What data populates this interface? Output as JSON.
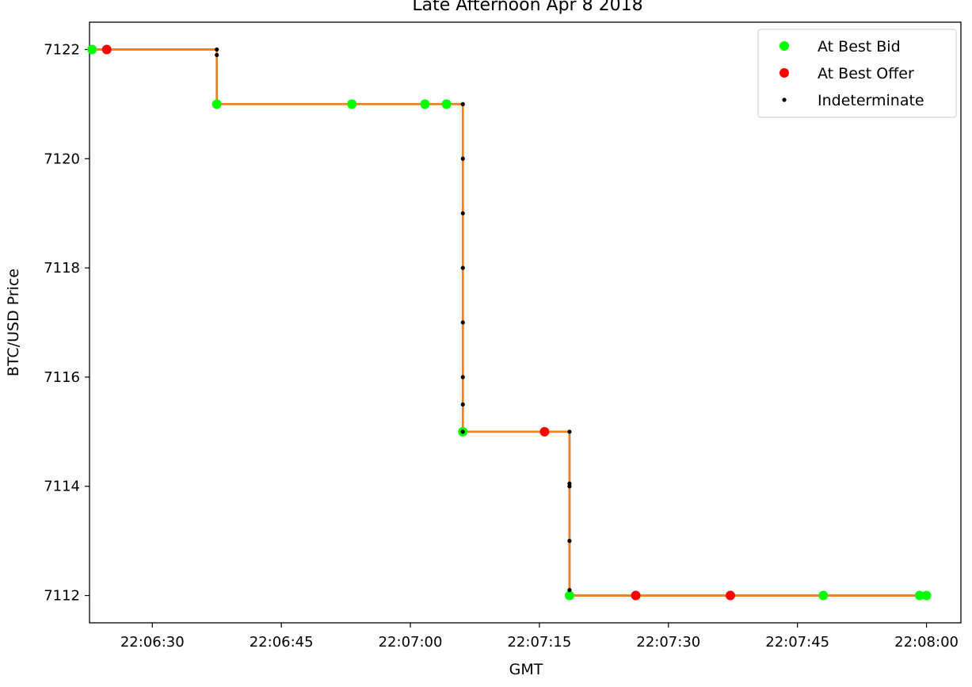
{
  "chart_data": {
    "type": "line",
    "title": "Late Afternoon Apr 8 2018",
    "xlabel": "GMT",
    "ylabel": "BTC/USD Price",
    "x_ticks": [
      "22:06:30",
      "22:06:45",
      "22:07:00",
      "22:07:15",
      "22:07:30",
      "22:07:45",
      "22:08:00"
    ],
    "x_tick_seconds": [
      30,
      45,
      60,
      75,
      90,
      105,
      120
    ],
    "y_ticks": [
      7112,
      7114,
      7116,
      7118,
      7120,
      7122
    ],
    "xlim": [
      "22:06:22.7",
      "22:08:04.0"
    ],
    "ylim": [
      7111.5,
      7122.5
    ],
    "grid": false,
    "legend_position": "top-right",
    "price_line": {
      "colors": [
        "#1f77b4",
        "#ff7f0e"
      ],
      "x": [
        "22:06:23.0",
        "22:06:37.5",
        "22:06:37.5",
        "22:07:06.1",
        "22:07:06.1",
        "22:07:18.5",
        "22:07:18.5",
        "22:08:00.0"
      ],
      "y": [
        7122,
        7122,
        7121,
        7121,
        7115,
        7115,
        7112,
        7112
      ]
    },
    "series": [
      {
        "name": "At Best Bid",
        "color": "#00ff00",
        "x": [
          "22:06:23.0",
          "22:06:37.5",
          "22:06:53.2",
          "22:07:01.7",
          "22:07:04.2",
          "22:07:06.1",
          "22:07:18.5",
          "22:07:48.0",
          "22:07:59.2",
          "22:08:00.0"
        ],
        "y": [
          7122,
          7121,
          7121,
          7121,
          7121,
          7115,
          7112,
          7112,
          7112,
          7112
        ]
      },
      {
        "name": "At Best Offer",
        "color": "#ff0000",
        "x": [
          "22:06:24.7",
          "22:07:15.6",
          "22:07:26.2",
          "22:07:37.2"
        ],
        "y": [
          7122,
          7115,
          7112,
          7112
        ]
      },
      {
        "name": "Indeterminate",
        "color": "#000000",
        "x": [
          "22:06:37.5",
          "22:06:37.5",
          "22:07:06.1",
          "22:07:06.1",
          "22:07:06.1",
          "22:07:06.1",
          "22:07:06.1",
          "22:07:06.1",
          "22:07:06.1",
          "22:07:06.1",
          "22:07:06.1",
          "22:07:18.5",
          "22:07:18.5",
          "22:07:18.5",
          "22:07:18.5",
          "22:07:18.5"
        ],
        "y": [
          7122,
          7121.9,
          7121,
          7120,
          7119,
          7118,
          7117,
          7116,
          7115.5,
          7115,
          7115,
          7115,
          7114,
          7114.05,
          7113,
          7112.1
        ]
      }
    ]
  }
}
